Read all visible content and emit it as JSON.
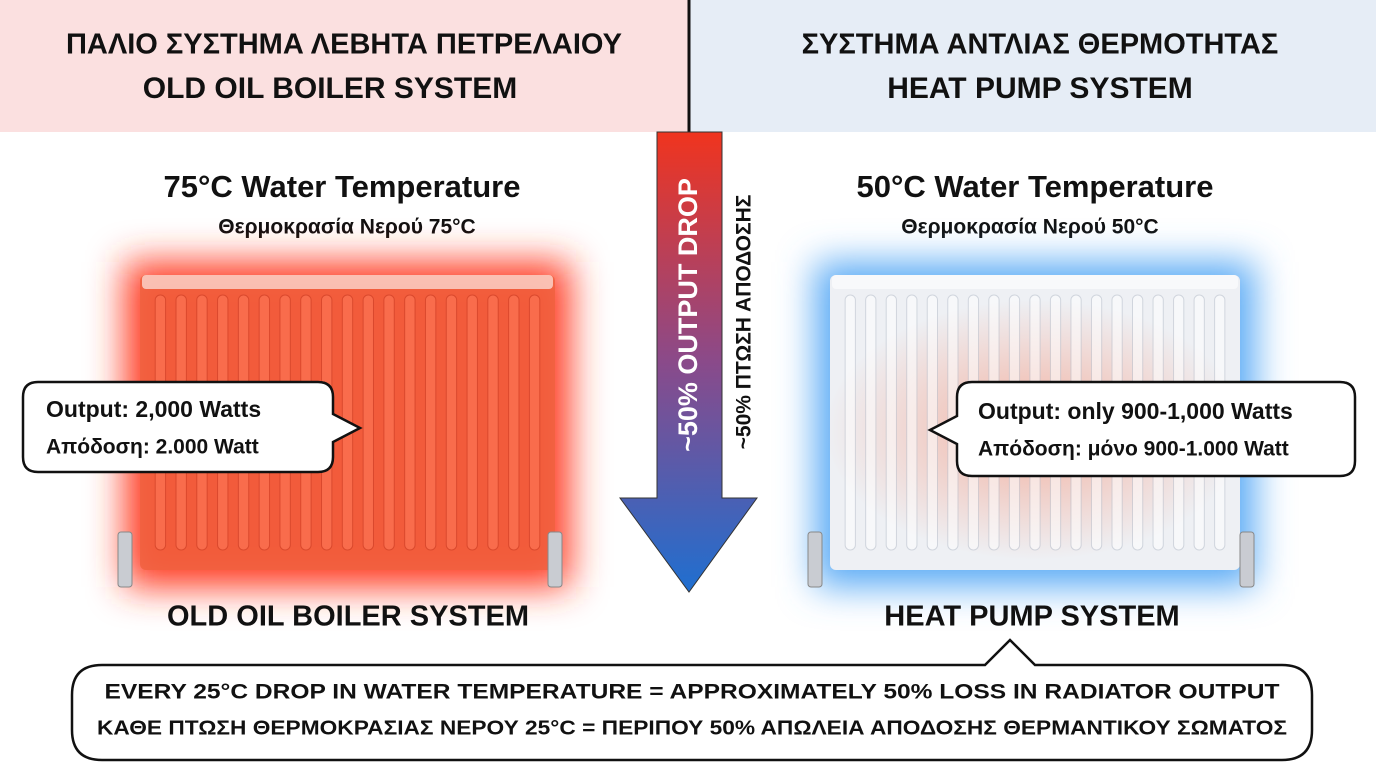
{
  "left": {
    "header_greek": "ΠΑΛΙΟ ΣΥΣΤΗΜΑ ΛΕΒΗΤΑ ΠΕΤΡΕΛΑΙΟΥ",
    "header_english": "OLD OIL BOILER SYSTEM",
    "temperature": "75°C Water Temperature",
    "temperature_greek": "Θερμοκρασία Νερού 75°C",
    "output": "Output: 2,000 Watts",
    "output_greek": "Απόδοση: 2.000 Watt",
    "caption": "OLD OIL BOILER SYSTEM"
  },
  "right": {
    "header_greek": "ΣΥΣΤΗΜΑ ΑΝΤΛΙΑΣ ΘΕΡΜΟΤΗΤΑΣ",
    "header_english": "HEAT PUMP SYSTEM",
    "temperature": "50°C Water Temperature",
    "temperature_greek": "Θερμοκρασία Νερού 50°C",
    "output": "Output: only 900-1,000 Watts",
    "output_greek": "Απόδοση: μόνο 900-1.000 Watt",
    "caption": "HEAT PUMP SYSTEM"
  },
  "arrow": {
    "english": "~50% OUTPUT DROP",
    "greek": "~50% ΠΤΩΣΗ ΑΠΟΔΟΣΗΣ"
  },
  "footer": {
    "english": "EVERY 25°C DROP IN WATER TEMPERATURE = APPROXIMATELY 50% LOSS IN RADIATOR OUTPUT",
    "greek": "ΚΑΘΕ ΠΤΩΣΗ ΘΕΡΜΟΚΡΑΣΙΑΣ ΝΕΡΟΥ 25°C = ΠΕΡΙΠΟΥ 50% ΑΠΩΛΕΙΑ ΑΠΟΔΟΣΗΣ ΘΕΡΜΑΝΤΙΚΟΥ ΣΩΜΑΤΟΣ"
  }
}
